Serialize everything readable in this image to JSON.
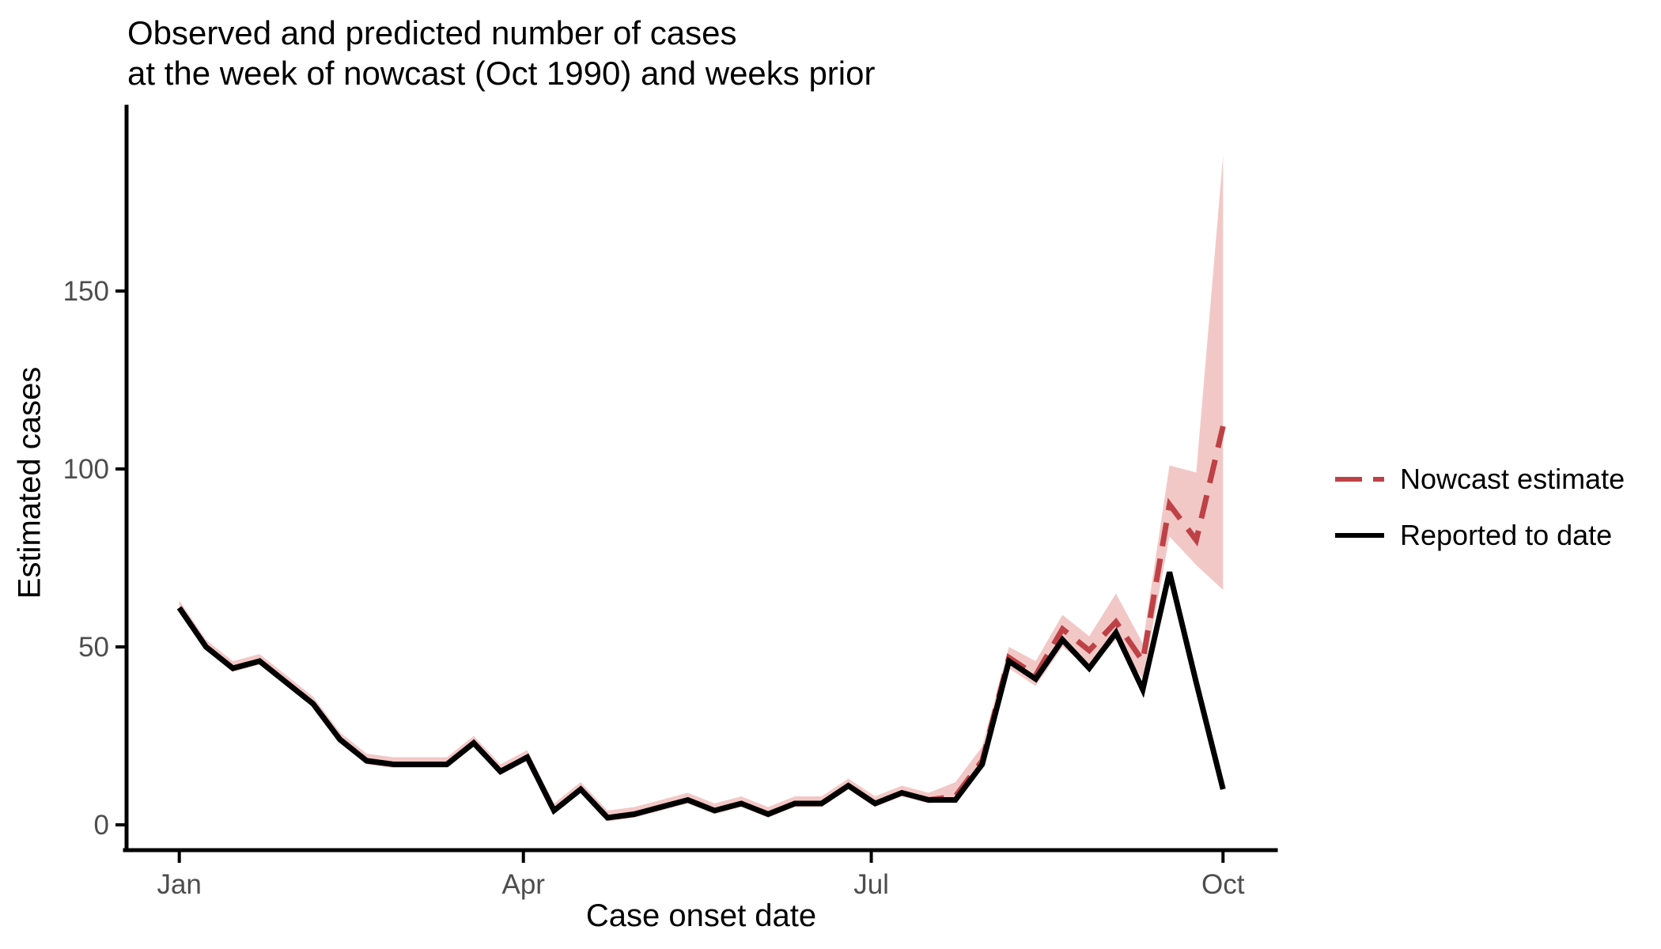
{
  "title": {
    "line1": "Observed and predicted number of cases",
    "line2": "at the week of nowcast (Oct 1990) and weeks prior"
  },
  "axes": {
    "x_title": "Case onset date",
    "y_title": "Estimated cases"
  },
  "legend": {
    "items": [
      {
        "label": "Nowcast estimate",
        "series": "nowcast"
      },
      {
        "label": "Reported to date",
        "series": "reported"
      }
    ]
  },
  "colors": {
    "nowcast_line": "#BE4146",
    "reported_line": "#000000",
    "ribbon": "#F2C8C7",
    "axis_text": "#4D4D4D",
    "axis_line": "#000000"
  },
  "chart_data": {
    "type": "line",
    "title": "Observed and predicted number of cases at the week of nowcast (Oct 1990) and weeks prior",
    "xlabel": "Case onset date",
    "ylabel": "Estimated cases",
    "x_unit": "week index from first plotted week (0 = Jan week, 39 = Oct nowcast week)",
    "grid": false,
    "legend_position": "right",
    "x_axis": {
      "ticks": [
        {
          "label": "Jan",
          "week": 0
        },
        {
          "label": "Apr",
          "week": 12.857
        },
        {
          "label": "Jul",
          "week": 25.857
        },
        {
          "label": "Oct",
          "week": 39
        }
      ]
    },
    "y_axis": {
      "ticks": [
        {
          "label": "0",
          "value": 0
        },
        {
          "label": "50",
          "value": 50
        },
        {
          "label": "100",
          "value": 100
        },
        {
          "label": "150",
          "value": 150
        }
      ],
      "range": [
        0,
        200
      ]
    },
    "series": [
      {
        "id": "nowcast",
        "name": "Nowcast estimate",
        "style": "dashed",
        "color": "#BE4146",
        "values": [
          61,
          50,
          44,
          46,
          40,
          34,
          24,
          18,
          17,
          17,
          17,
          23,
          15,
          19,
          4,
          10,
          2,
          3,
          5,
          7,
          4,
          6,
          3,
          6,
          6,
          11,
          6,
          9,
          7,
          8,
          18,
          47,
          42,
          55,
          49,
          57,
          46,
          90,
          80,
          112
        ]
      },
      {
        "id": "reported",
        "name": "Reported to date",
        "style": "solid",
        "color": "#000000",
        "values": [
          61,
          50,
          44,
          46,
          40,
          34,
          24,
          18,
          17,
          17,
          17,
          23,
          15,
          19,
          4,
          10,
          2,
          3,
          5,
          7,
          4,
          6,
          3,
          6,
          6,
          11,
          6,
          9,
          7,
          7,
          17,
          46,
          41,
          52,
          44,
          54,
          38,
          71,
          40,
          10
        ]
      }
    ],
    "ribbon": {
      "name": "nowcast uncertainty interval",
      "color": "#F2C8C7",
      "lower": [
        60,
        49,
        43,
        45,
        39,
        33,
        23,
        17,
        16,
        16,
        16,
        22,
        14,
        18,
        3,
        9,
        1,
        2,
        4,
        6,
        3,
        5,
        2,
        5,
        5,
        10,
        5,
        8,
        6,
        7,
        16,
        44,
        39,
        50,
        44,
        52,
        41,
        81,
        73,
        66
      ],
      "upper": [
        63,
        52,
        46,
        48,
        42,
        36,
        26,
        20,
        19,
        19,
        19,
        25,
        17,
        21,
        6,
        12,
        4,
        5,
        7,
        9,
        6,
        8,
        5,
        8,
        8,
        13,
        8,
        11,
        9,
        12,
        22,
        50,
        46,
        59,
        53,
        65,
        51,
        101,
        99,
        188
      ]
    }
  }
}
